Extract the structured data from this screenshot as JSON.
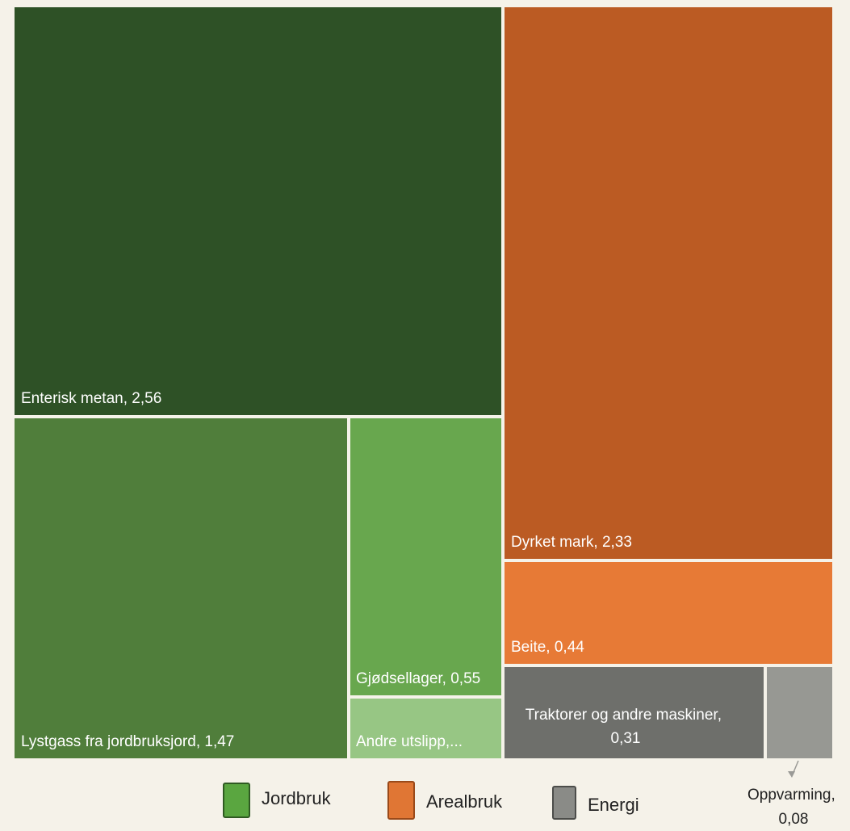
{
  "chart_data": {
    "type": "treemap",
    "title": "",
    "unit_values_note": "",
    "groups": [
      {
        "name": "Jordbruk",
        "color": "#5a9a3e"
      },
      {
        "name": "Arealbruk",
        "color": "#e07a33"
      },
      {
        "name": "Energi",
        "color": "#7d7e7a"
      }
    ],
    "items": [
      {
        "label": "Enterisk metan, 2,56",
        "category": "Enterisk metan",
        "value": 2.56,
        "group": "Jordbruk",
        "color": "#2e5126"
      },
      {
        "label": "Lystgass fra jordbruksjord, 1,47",
        "category": "Lystgass fra jordbruksjord",
        "value": 1.47,
        "group": "Jordbruk",
        "color": "#507e3b"
      },
      {
        "label": "Gjødsellager, 0,55",
        "category": "Gjødsellager",
        "value": 0.55,
        "group": "Jordbruk",
        "color": "#68a74e"
      },
      {
        "label": "Andre utslipp,...",
        "category": "Andre utslipp",
        "value": null,
        "group": "Jordbruk",
        "color": "#97c684"
      },
      {
        "label": "Dyrket mark, 2,33",
        "category": "Dyrket mark",
        "value": 2.33,
        "group": "Arealbruk",
        "color": "#bb5b23"
      },
      {
        "label": "Beite, 0,44",
        "category": "Beite",
        "value": 0.44,
        "group": "Arealbruk",
        "color": "#e77a36"
      },
      {
        "label_lines": [
          "Traktorer og andre maskiner,",
          "0,31"
        ],
        "category": "Traktorer og andre maskiner",
        "value": 0.31,
        "group": "Energi",
        "color": "#6e6f6b"
      },
      {
        "label_lines": [
          "Oppvarming,",
          "0,08"
        ],
        "category": "Oppvarming",
        "value": 0.08,
        "group": "Energi",
        "color": "#979893",
        "callout": true
      }
    ],
    "legend": {
      "position": "bottom",
      "items": [
        {
          "label": "Jordbruk",
          "color": "#5aa640"
        },
        {
          "label": "Arealbruk",
          "color": "#e07634"
        },
        {
          "label": "Energi",
          "color": "#8a8b87"
        }
      ]
    }
  }
}
